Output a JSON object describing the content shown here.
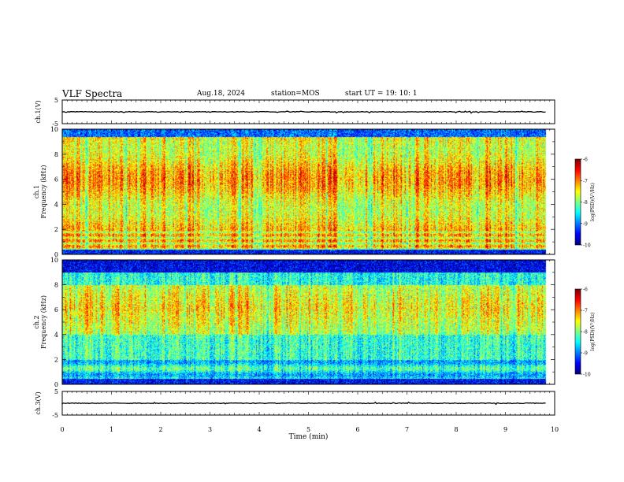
{
  "header": {
    "title": "VLF Spectra",
    "date": "Aug.18, 2024",
    "station": "station=MOS",
    "start": "start  UT =   19: 10: 1"
  },
  "chart_data": [
    {
      "type": "line",
      "name": "ch1-waveform",
      "ylabel": "ch.1(V)",
      "ylim": [
        -5,
        5
      ],
      "yticks": [
        "5",
        "-5"
      ],
      "xlim": [
        0,
        10
      ],
      "baseline": 0
    },
    {
      "type": "heatmap",
      "name": "ch1-spectrogram",
      "ylabel": "ch.1\nFrequency (kHz)",
      "ylim": [
        0,
        10
      ],
      "yticks": [
        "0",
        "2",
        "4",
        "6",
        "8",
        "10"
      ],
      "xlim": [
        0,
        10
      ],
      "data_xmax": 9.83,
      "colorbar": {
        "label": "log(PSD)(V²/Hz)",
        "range": [
          -10,
          -6
        ],
        "ticks": [
          "-6",
          "-7",
          "-8",
          "-9",
          "-10"
        ]
      }
    },
    {
      "type": "heatmap",
      "name": "ch2-spectrogram",
      "ylabel": "ch.2\nFrequency (kHz)",
      "ylim": [
        0,
        10
      ],
      "yticks": [
        "0",
        "2",
        "4",
        "6",
        "8",
        "10"
      ],
      "xlim": [
        0,
        10
      ],
      "data_xmax": 9.83,
      "colorbar": {
        "label": "log(PSD)(V²/Hz)",
        "range": [
          -10,
          -6
        ],
        "ticks": [
          "-6",
          "-7",
          "-8",
          "-9",
          "-10"
        ]
      }
    },
    {
      "type": "line",
      "name": "ch3-waveform",
      "ylabel": "ch.3(V)",
      "ylim": [
        -5,
        5
      ],
      "yticks": [
        "5",
        "-5"
      ],
      "xlim": [
        0,
        10
      ],
      "baseline": 0
    }
  ],
  "xaxis": {
    "label": "Time  (min)",
    "ticks": [
      "0",
      "1",
      "2",
      "3",
      "4",
      "5",
      "6",
      "7",
      "8",
      "9",
      "10"
    ]
  }
}
